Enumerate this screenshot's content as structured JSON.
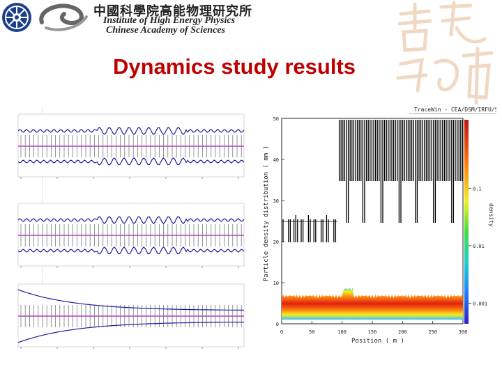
{
  "header": {
    "institute_cn": "中國科學院高能物理研究所",
    "institute_en_line1": "Institute of High Energy Physics",
    "institute_en_line2": "Chinese Academy of Sciences"
  },
  "title": "Dynamics study results",
  "tracewin_plot": {
    "header": "TraceWin - CEA/DSM/IRFU/SACM",
    "y_label": "Particle density distribution ( mm )",
    "x_label": "Position ( m )",
    "y_ticks": [
      "0",
      "10",
      "20",
      "30",
      "40",
      "50"
    ],
    "x_ticks": [
      "0",
      "50",
      "100",
      "150",
      "200",
      "250",
      "300"
    ],
    "colorbar_label": "density",
    "colorbar_ticks": [
      "0.1",
      "0.01",
      "0.001"
    ]
  },
  "colors": {
    "title": "#c00000",
    "envelope": "#1a1aa0",
    "center": "#b040c0",
    "element": "#666666"
  }
}
